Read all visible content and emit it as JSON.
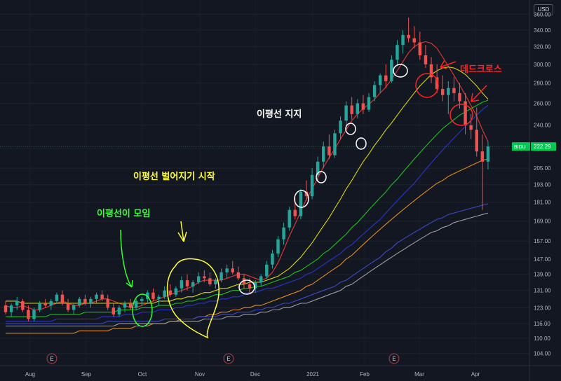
{
  "currency": "USD",
  "ticker_label": "BIDU",
  "last_price": "222.29",
  "x_axis_labels": [
    "Aug",
    "Sep",
    "Oct",
    "Nov",
    "Dec",
    "2021",
    "Feb",
    "Mar",
    "Apr"
  ],
  "earnings_marker": "E",
  "annotations": {
    "death_cross": "데드크로스",
    "ma_support": "이평선 지지",
    "ma_divergence": "이평선 벌어지기 시작",
    "ma_converge": "이평선이 모임"
  },
  "colors": {
    "background": "#131722",
    "up": "#26a69a",
    "down": "#ef5350",
    "ma5": "#e53935",
    "ma20": "#d7d700",
    "ma60": "#1fbf1f",
    "ma120": "#2b34c9",
    "ma240": "#e08a1e",
    "ma480": "#3d49c8",
    "ma600": "#9e9e9e",
    "anno_red": "#ff2424",
    "anno_yellow": "#ffff33",
    "anno_green": "#33ff33",
    "anno_white": "#ffffff",
    "last_price_box": "#00c853"
  },
  "chart_data": {
    "type": "candlestick",
    "y_scale": "log",
    "ylim": [
      100,
      370
    ],
    "y_ticks": [
      104,
      110,
      116,
      123,
      131,
      139,
      147,
      157,
      169,
      181,
      193,
      205,
      220,
      240,
      260,
      280,
      300,
      320,
      340,
      360
    ],
    "x_labels": [
      "Aug",
      "Sep",
      "Oct",
      "Nov",
      "Dec",
      "2021",
      "Feb",
      "Mar",
      "Apr"
    ],
    "earnings_months": [
      "Oct",
      "Nov",
      "Feb"
    ],
    "candles": [
      [
        124,
        126,
        120,
        121
      ],
      [
        121,
        125,
        119,
        124
      ],
      [
        124,
        128,
        122,
        126
      ],
      [
        126,
        127,
        121,
        122
      ],
      [
        122,
        124,
        117,
        118
      ],
      [
        118,
        123,
        117,
        122
      ],
      [
        122,
        126,
        121,
        125
      ],
      [
        125,
        127,
        123,
        124
      ],
      [
        124,
        127,
        122,
        126
      ],
      [
        126,
        130,
        125,
        129
      ],
      [
        129,
        131,
        124,
        125
      ],
      [
        125,
        127,
        121,
        122
      ],
      [
        122,
        125,
        120,
        124
      ],
      [
        124,
        128,
        123,
        127
      ],
      [
        127,
        129,
        124,
        125
      ],
      [
        125,
        128,
        123,
        127
      ],
      [
        127,
        130,
        125,
        129
      ],
      [
        129,
        131,
        126,
        127
      ],
      [
        127,
        129,
        122,
        123
      ],
      [
        123,
        125,
        119,
        120
      ],
      [
        120,
        124,
        119,
        123
      ],
      [
        123,
        126,
        121,
        125
      ],
      [
        125,
        127,
        122,
        123
      ],
      [
        123,
        127,
        122,
        126
      ],
      [
        126,
        128,
        124,
        127
      ],
      [
        127,
        131,
        125,
        130
      ],
      [
        130,
        132,
        126,
        127
      ],
      [
        127,
        129,
        124,
        128
      ],
      [
        128,
        133,
        127,
        131
      ],
      [
        131,
        134,
        128,
        129
      ],
      [
        129,
        133,
        128,
        132
      ],
      [
        132,
        138,
        130,
        136
      ],
      [
        136,
        139,
        131,
        133
      ],
      [
        133,
        136,
        130,
        135
      ],
      [
        135,
        140,
        134,
        138
      ],
      [
        138,
        141,
        135,
        137
      ],
      [
        137,
        140,
        133,
        134
      ],
      [
        134,
        137,
        132,
        136
      ],
      [
        136,
        142,
        135,
        140
      ],
      [
        140,
        144,
        137,
        142
      ],
      [
        142,
        146,
        139,
        140
      ],
      [
        140,
        143,
        136,
        137
      ],
      [
        137,
        139,
        132,
        134
      ],
      [
        134,
        137,
        130,
        132
      ],
      [
        132,
        136,
        130,
        135
      ],
      [
        135,
        139,
        133,
        138
      ],
      [
        138,
        146,
        137,
        144
      ],
      [
        144,
        152,
        142,
        150
      ],
      [
        150,
        160,
        148,
        158
      ],
      [
        158,
        168,
        155,
        165
      ],
      [
        165,
        178,
        163,
        176
      ],
      [
        176,
        184,
        170,
        172
      ],
      [
        172,
        190,
        170,
        188
      ],
      [
        188,
        196,
        182,
        185
      ],
      [
        185,
        205,
        183,
        200
      ],
      [
        200,
        214,
        196,
        210
      ],
      [
        210,
        226,
        205,
        222
      ],
      [
        222,
        232,
        212,
        215
      ],
      [
        215,
        236,
        213,
        233
      ],
      [
        233,
        248,
        228,
        244
      ],
      [
        244,
        262,
        240,
        258
      ],
      [
        258,
        266,
        245,
        250
      ],
      [
        250,
        264,
        246,
        260
      ],
      [
        260,
        268,
        250,
        254
      ],
      [
        254,
        270,
        252,
        266
      ],
      [
        266,
        282,
        262,
        278
      ],
      [
        278,
        290,
        270,
        288
      ],
      [
        288,
        300,
        275,
        282
      ],
      [
        282,
        310,
        280,
        305
      ],
      [
        305,
        328,
        298,
        322
      ],
      [
        322,
        340,
        312,
        334
      ],
      [
        334,
        356,
        325,
        330
      ],
      [
        330,
        345,
        318,
        325
      ],
      [
        325,
        338,
        305,
        310
      ],
      [
        310,
        322,
        296,
        300
      ],
      [
        300,
        308,
        280,
        286
      ],
      [
        286,
        300,
        270,
        274
      ],
      [
        274,
        288,
        262,
        268
      ],
      [
        268,
        282,
        250,
        275
      ],
      [
        275,
        286,
        262,
        270
      ],
      [
        270,
        280,
        255,
        262
      ],
      [
        262,
        270,
        232,
        240
      ],
      [
        240,
        250,
        228,
        236
      ],
      [
        236,
        256,
        214,
        218
      ],
      [
        218,
        232,
        176,
        210
      ],
      [
        210,
        226,
        204,
        222
      ]
    ],
    "moving_averages": [
      {
        "key": "ma5",
        "values": [
          124,
          123,
          123,
          124,
          123,
          122,
          122,
          123,
          124,
          125,
          126,
          125,
          124,
          124,
          125,
          125,
          126,
          127,
          127,
          126,
          125,
          124,
          123,
          123,
          124,
          125,
          126,
          127,
          128,
          129,
          130,
          131,
          132,
          133,
          135,
          136,
          136,
          136,
          136,
          137,
          138,
          139,
          139,
          138,
          137,
          136,
          137,
          140,
          145,
          152,
          160,
          167,
          175,
          183,
          190,
          198,
          206,
          213,
          220,
          228,
          236,
          244,
          250,
          255,
          259,
          264,
          270,
          276,
          284,
          293,
          303,
          313,
          320,
          324,
          326,
          324,
          318,
          308,
          298,
          288,
          278,
          268,
          258,
          248,
          236,
          226
        ]
      },
      {
        "key": "ma20",
        "values": [
          126,
          126,
          126,
          125,
          125,
          125,
          125,
          125,
          125,
          125,
          125,
          125,
          125,
          125,
          125,
          125,
          125,
          125,
          125,
          125,
          125,
          125,
          125,
          125,
          125,
          125,
          125,
          126,
          126,
          126,
          127,
          127,
          128,
          128,
          129,
          130,
          130,
          131,
          132,
          132,
          133,
          134,
          134,
          135,
          135,
          135,
          136,
          137,
          138,
          140,
          142,
          145,
          148,
          152,
          156,
          161,
          166,
          171,
          177,
          183,
          190,
          196,
          203,
          210,
          216,
          223,
          229,
          236,
          242,
          249,
          256,
          263,
          270,
          277,
          283,
          289,
          293,
          296,
          297,
          296,
          293,
          289,
          283,
          277,
          270,
          264
        ]
      },
      {
        "key": "ma60",
        "values": [
          119,
          119,
          119,
          119,
          119,
          119,
          119,
          119,
          120,
          120,
          120,
          120,
          120,
          120,
          121,
          121,
          121,
          121,
          121,
          121,
          122,
          122,
          122,
          122,
          123,
          123,
          123,
          124,
          124,
          124,
          125,
          125,
          126,
          126,
          127,
          127,
          128,
          129,
          129,
          130,
          131,
          131,
          132,
          132,
          133,
          133,
          134,
          135,
          136,
          137,
          138,
          140,
          141,
          143,
          145,
          147,
          150,
          152,
          155,
          158,
          161,
          165,
          168,
          172,
          176,
          180,
          184,
          188,
          193,
          197,
          202,
          207,
          212,
          217,
          222,
          227,
          232,
          237,
          241,
          245,
          249,
          252,
          255,
          258,
          261,
          263
        ]
      },
      {
        "key": "ma120",
        "values": [
          117,
          117,
          117,
          117,
          117,
          117,
          117,
          117,
          117,
          118,
          118,
          118,
          118,
          118,
          118,
          118,
          118,
          119,
          119,
          119,
          119,
          120,
          120,
          120,
          121,
          121,
          121,
          122,
          122,
          122,
          123,
          123,
          124,
          124,
          125,
          125,
          126,
          126,
          127,
          127,
          128,
          128,
          129,
          130,
          130,
          131,
          132,
          132,
          133,
          134,
          135,
          136,
          137,
          139,
          140,
          142,
          144,
          146,
          148,
          150,
          153,
          155,
          158,
          161,
          164,
          167,
          170,
          174,
          178,
          182,
          186,
          190,
          194,
          199,
          204,
          209,
          214,
          219,
          224,
          229,
          234,
          239,
          244,
          249,
          254,
          258
        ]
      },
      {
        "key": "ma240",
        "values": [
          112,
          112,
          112,
          112,
          112,
          112,
          112,
          112,
          112,
          112,
          112,
          112,
          112,
          113,
          113,
          113,
          113,
          113,
          113,
          114,
          114,
          114,
          114,
          115,
          115,
          115,
          116,
          116,
          116,
          117,
          117,
          118,
          118,
          118,
          119,
          119,
          120,
          120,
          121,
          121,
          122,
          122,
          123,
          123,
          124,
          124,
          125,
          126,
          127,
          128,
          129,
          130,
          131,
          133,
          134,
          136,
          138,
          140,
          142,
          144,
          147,
          149,
          152,
          155,
          158,
          161,
          164,
          167,
          170,
          173,
          176,
          179,
          182,
          185,
          188,
          191,
          194,
          196,
          199,
          201,
          203,
          205,
          207,
          209,
          211,
          212
        ]
      },
      {
        "key": "ma480",
        "values": [
          116,
          116,
          116,
          116,
          116,
          116,
          116,
          116,
          116,
          116,
          116,
          116,
          116,
          116,
          116,
          116,
          116,
          116,
          117,
          117,
          117,
          117,
          117,
          117,
          117,
          117,
          117,
          117,
          118,
          118,
          118,
          118,
          118,
          118,
          119,
          119,
          119,
          119,
          120,
          120,
          120,
          121,
          121,
          121,
          122,
          122,
          123,
          123,
          124,
          125,
          125,
          126,
          127,
          128,
          129,
          130,
          131,
          132,
          133,
          135,
          136,
          138,
          140,
          142,
          144,
          146,
          148,
          151,
          153,
          156,
          158,
          160,
          162,
          164,
          166,
          168,
          170,
          171,
          173,
          174,
          175,
          176,
          177,
          178,
          179,
          180
        ]
      },
      {
        "key": "ma600",
        "values": [
          115,
          115,
          115,
          115,
          115,
          115,
          115,
          115,
          115,
          115,
          115,
          115,
          115,
          115,
          115,
          115,
          115,
          115,
          115,
          115,
          116,
          116,
          116,
          116,
          116,
          116,
          116,
          116,
          116,
          117,
          117,
          117,
          117,
          117,
          117,
          118,
          118,
          118,
          118,
          119,
          119,
          119,
          120,
          120,
          120,
          121,
          121,
          122,
          122,
          123,
          123,
          124,
          125,
          125,
          126,
          127,
          128,
          129,
          130,
          131,
          133,
          134,
          136,
          138,
          140,
          142,
          144,
          146,
          148,
          150,
          152,
          154,
          156,
          158,
          160,
          162,
          163,
          165,
          166,
          168,
          169,
          170,
          171,
          172,
          173,
          174
        ]
      }
    ]
  }
}
